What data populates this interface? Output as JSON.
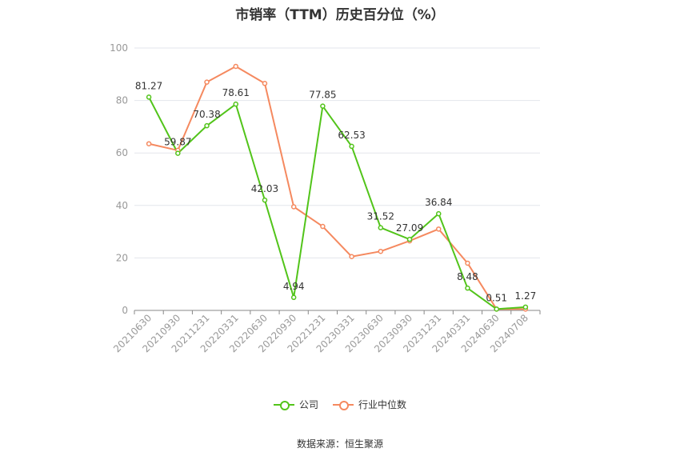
{
  "chart_data": {
    "type": "line",
    "title": "市销率（TTM）历史百分位（%）",
    "categories": [
      "20210630",
      "20210930",
      "20211231",
      "20220331",
      "20220630",
      "20220930",
      "20221231",
      "20230331",
      "20230630",
      "20230930",
      "20231231",
      "20240331",
      "20240630",
      "20240708"
    ],
    "series": [
      {
        "name": "公司",
        "color": "#52c41a",
        "values": [
          81.27,
          59.87,
          70.38,
          78.61,
          42.03,
          4.94,
          77.85,
          62.53,
          31.52,
          27.09,
          36.84,
          8.48,
          0.51,
          1.27
        ],
        "labels": [
          "81.27",
          "59.87",
          "70.38",
          "78.61",
          "42.03",
          "4.94",
          "77.85",
          "62.53",
          "31.52",
          "27.09",
          "36.84",
          "8.48",
          "0.51",
          "1.27"
        ]
      },
      {
        "name": "行业中位数",
        "color": "#f5895f",
        "values": [
          63.5,
          61.0,
          87.0,
          93.0,
          86.5,
          39.5,
          32.0,
          20.5,
          22.5,
          26.5,
          31.0,
          18.0,
          0.5,
          0.5
        ]
      }
    ],
    "yticks": [
      "0",
      "20",
      "40",
      "60",
      "80",
      "100"
    ],
    "ylim": [
      0,
      100
    ],
    "grid": true,
    "legend_position": "bottom"
  },
  "source": "数据来源：恒生聚源"
}
